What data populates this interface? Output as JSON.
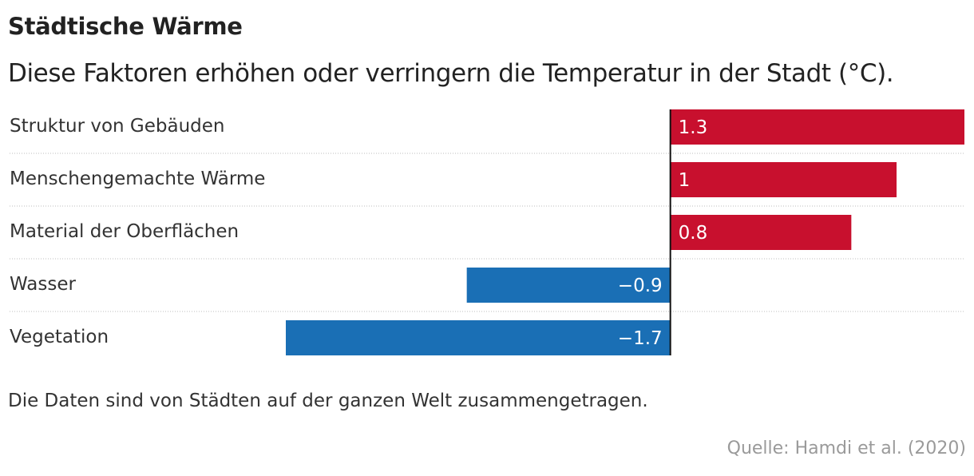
{
  "chart_data": {
    "type": "bar",
    "orientation": "horizontal",
    "title": "Städtische Wärme",
    "subtitle": "Diese Faktoren erhöhen oder verringern die Temperatur in der Stadt (°C).",
    "categories": [
      "Struktur von Gebäuden",
      "Menschengemachte Wärme",
      "Material der Oberflächen",
      "Wasser",
      "Vegetation"
    ],
    "values": [
      1.3,
      1,
      0.8,
      -0.9,
      -1.7
    ],
    "value_labels": [
      "1.3",
      "1",
      "0.8",
      "−0.9",
      "−1.7"
    ],
    "xlim": [
      -1.7,
      1.3
    ],
    "positive_color": "#c8102e",
    "negative_color": "#1a6fb5",
    "axis_color": "#111111"
  },
  "note": "Die Daten sind von Städten auf der ganzen Welt zusammengetragen.",
  "source": "Quelle: Hamdi et al. (2020)"
}
